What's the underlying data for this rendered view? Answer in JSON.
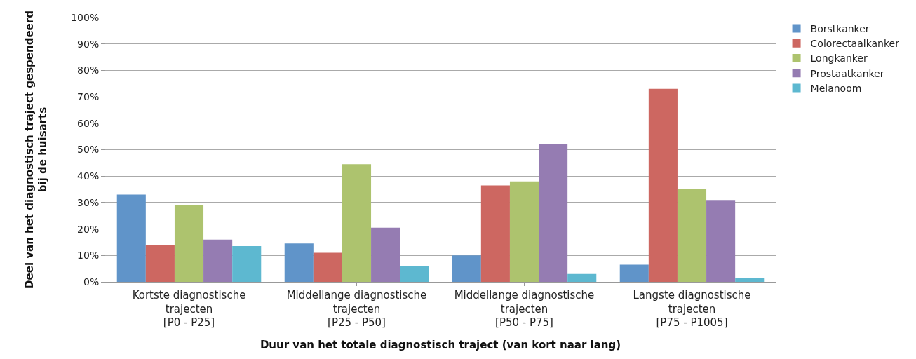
{
  "chart_data": {
    "type": "bar",
    "xlabel": "Duur van het totale diagnostisch traject (van kort naar lang)",
    "ylabel": "Deel van het diagnostisch traject gespendeerd\nbij de huisarts",
    "categories": [
      "Kortste diagnostische\ntrajecten\n[P0 - P25]",
      "Middellange diagnostische\ntrajecten\n[P25 - P50]",
      "Middellange diagnostische\ntrajecten\n[P50 - P75]",
      "Langste diagnostische\ntrajecten\n[P75 - P1005]"
    ],
    "series": [
      {
        "name": "Borstkanker",
        "color": "#6094c9",
        "values": [
          33,
          14.5,
          10,
          6.5
        ]
      },
      {
        "name": "Colorectaalkanker",
        "color": "#cd6761",
        "values": [
          14,
          11,
          36.5,
          73
        ]
      },
      {
        "name": "Longkanker",
        "color": "#adc36e",
        "values": [
          29,
          44.5,
          38,
          35
        ]
      },
      {
        "name": "Prostaatkanker",
        "color": "#957cb2",
        "values": [
          16,
          20.5,
          52,
          31
        ]
      },
      {
        "name": "Melanoom",
        "color": "#5db8d0",
        "values": [
          13.5,
          6,
          3,
          1.5
        ]
      }
    ],
    "ylim": [
      0,
      100
    ],
    "yticks": [
      {
        "value": 0,
        "label": "0%"
      },
      {
        "value": 10,
        "label": "10%"
      },
      {
        "value": 20,
        "label": "20%"
      },
      {
        "value": 30,
        "label": "30%"
      },
      {
        "value": 40,
        "label": "40%"
      },
      {
        "value": 50,
        "label": "50%"
      },
      {
        "value": 60,
        "label": "60%"
      },
      {
        "value": 70,
        "label": "70%"
      },
      {
        "value": 80,
        "label": "80%"
      },
      {
        "value": 90,
        "label": "90%"
      },
      {
        "value": 100,
        "label": "100%"
      }
    ],
    "grid": "y",
    "legend": "top right"
  }
}
